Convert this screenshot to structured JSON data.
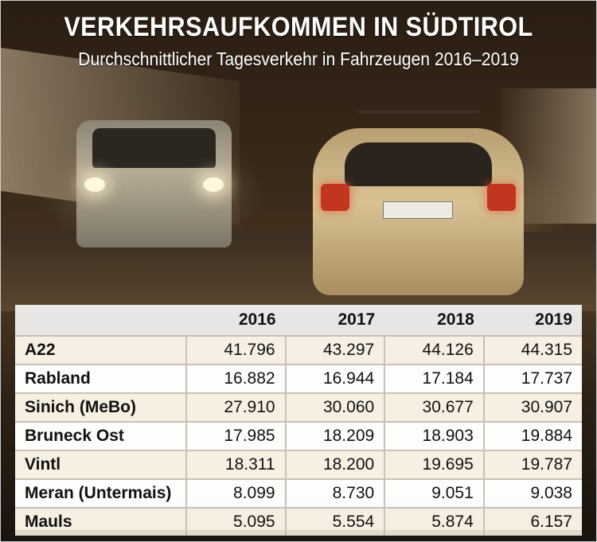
{
  "header": {
    "title": "VERKEHRSAUFKOMMEN IN SÜDTIROL",
    "subtitle": "Durchschnittlicher Tagesverkehr in Fahrzeugen 2016–2019"
  },
  "chart_data": {
    "type": "table",
    "title": "VERKEHRSAUFKOMMEN IN SÜDTIROL",
    "subtitle": "Durchschnittlicher Tagesverkehr in Fahrzeugen 2016–2019",
    "columns": [
      "2016",
      "2017",
      "2018",
      "2019"
    ],
    "rows": [
      {
        "name": "A22",
        "values": [
          "41.796",
          "43.297",
          "44.126",
          "44.315"
        ]
      },
      {
        "name": "Rabland",
        "values": [
          "16.882",
          "16.944",
          "17.184",
          "17.737"
        ]
      },
      {
        "name": "Sinich (MeBo)",
        "values": [
          "27.910",
          "30.060",
          "30.677",
          "30.907"
        ]
      },
      {
        "name": "Bruneck Ost",
        "values": [
          "17.985",
          "18.209",
          "18.903",
          "19.884"
        ]
      },
      {
        "name": "Vintl",
        "values": [
          "18.311",
          "18.200",
          "19.695",
          "19.787"
        ]
      },
      {
        "name": "Meran (Untermais)",
        "values": [
          "8.099",
          "8.730",
          "9.051",
          "9.038"
        ]
      },
      {
        "name": "Mauls",
        "values": [
          "5.095",
          "5.554",
          "5.874",
          "6.157"
        ]
      }
    ]
  }
}
